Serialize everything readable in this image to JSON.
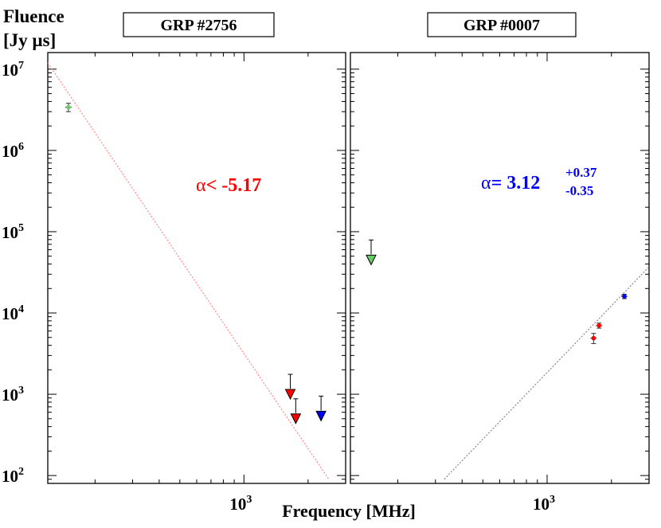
{
  "colors": {
    "red": "#ff0000",
    "blue": "#0000ff",
    "green": "#66cc66",
    "fit_red": "#ff8888",
    "fit_gray": "#888888"
  },
  "ylabel_line1": "Fluence",
  "ylabel_line2": "[Jy  µs]",
  "xlabel": "Frequency [MHz]",
  "chart_data": [
    {
      "type": "scatter",
      "title": "GRP #2756",
      "xscale": "log",
      "yscale": "log",
      "xlim": [
        120,
        3000
      ],
      "ylim": [
        80,
        16000000
      ],
      "x_ticks": [
        {
          "value": 1000,
          "label": "10^3"
        }
      ],
      "y_ticks": [
        {
          "value": 100,
          "base": "10",
          "exp": "2"
        },
        {
          "value": 1000,
          "base": "10",
          "exp": "3"
        },
        {
          "value": 10000,
          "base": "10",
          "exp": "4"
        },
        {
          "value": 100000,
          "base": "10",
          "exp": "5"
        },
        {
          "value": 1000000,
          "base": "10",
          "exp": "6"
        },
        {
          "value": 10000000,
          "base": "10",
          "exp": "7"
        }
      ],
      "points": [
        {
          "x": 150,
          "y": 3400000,
          "err_lo": 400000,
          "err_hi": 400000,
          "color": "green",
          "kind": "point"
        }
      ],
      "upper_limits": [
        {
          "x": 1650,
          "y": 1000,
          "color": "red"
        },
        {
          "x": 1750,
          "y": 500,
          "color": "red"
        },
        {
          "x": 2300,
          "y": 540,
          "color": "blue"
        }
      ],
      "fit": {
        "x": [
          120,
          2500
        ],
        "y": [
          12000000,
          90
        ],
        "color": "fit_red"
      },
      "annotation": {
        "prefix": "α",
        "text": "< -5.17",
        "color": "red"
      }
    },
    {
      "type": "scatter",
      "title": "GRP #0007",
      "xscale": "log",
      "yscale": "log",
      "xlim": [
        120,
        3000
      ],
      "ylim": [
        80,
        16000000
      ],
      "x_ticks": [
        {
          "value": 1000,
          "label": "10^3"
        }
      ],
      "y_ticks": [],
      "points": [
        {
          "x": 1650,
          "y": 4900,
          "err_lo": 700,
          "err_hi": 700,
          "color": "red",
          "kind": "point"
        },
        {
          "x": 1750,
          "y": 7000,
          "err_lo": 500,
          "err_hi": 500,
          "color": "red",
          "kind": "point"
        },
        {
          "x": 2300,
          "y": 16000,
          "err_lo": 1000,
          "err_hi": 1000,
          "color": "blue",
          "kind": "point"
        }
      ],
      "upper_limits": [
        {
          "x": 150,
          "y": 45000,
          "color": "green"
        }
      ],
      "fit": {
        "x": [
          330,
          3000
        ],
        "y": [
          90,
          37000
        ],
        "color": "fit_gray"
      },
      "annotation": {
        "prefix": "α",
        "text": "=  3.12",
        "sup": "+0.37",
        "sub": "-0.35",
        "color": "blue"
      }
    }
  ]
}
